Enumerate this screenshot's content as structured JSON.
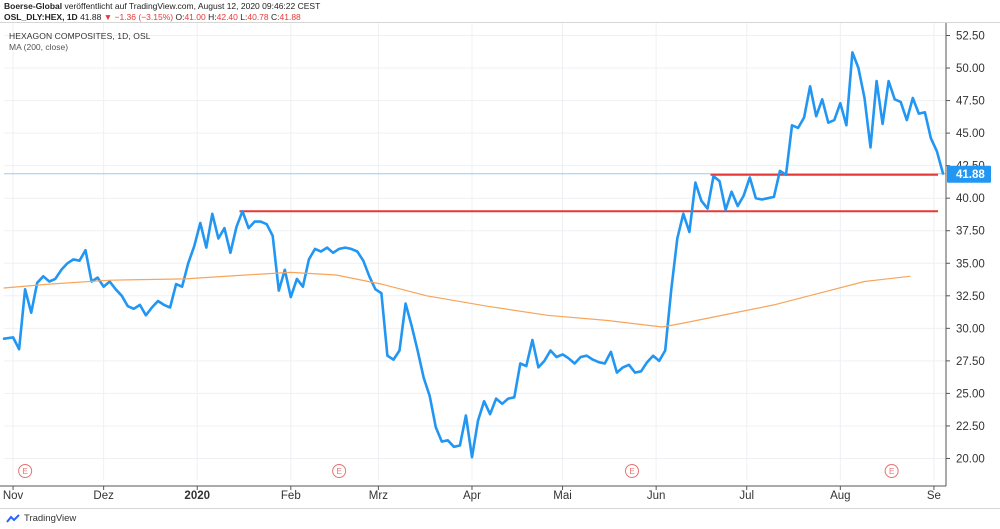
{
  "header": {
    "publisher": "Boerse-Global",
    "published_text": " veröffentlicht auf TradingView.com, August 12, 2020 09:46:22 CEST"
  },
  "quote": {
    "symbol": "OSL_DLY:HEX, 1D",
    "last": "41.88",
    "change": "▼ −1.36 (−3.15%)",
    "o_label": "O:",
    "o": "41.00",
    "h_label": "H:",
    "h": "42.40",
    "l_label": "L:",
    "l": "40.78",
    "c_label": "C:",
    "c": "41.88"
  },
  "legend": {
    "title": "HEXAGON COMPOSITES, 1D, OSL",
    "ma": "MA (200, close)"
  },
  "footer": {
    "brand": "TradingView"
  },
  "colors": {
    "price": "#2196f3",
    "ma": "#f7a55a",
    "hline": "#e53935",
    "last_label": "#2196f3",
    "event_marker": "#e57373"
  },
  "chart_data": {
    "type": "line",
    "title": "HEXAGON COMPOSITES, 1D, OSL",
    "xlabel": "",
    "ylabel": "",
    "y_ticks": [
      "20.00",
      "22.50",
      "25.00",
      "27.50",
      "30.00",
      "32.50",
      "35.00",
      "37.50",
      "40.00",
      "42.50",
      "45.00",
      "47.50",
      "50.00",
      "52.50"
    ],
    "x_ticks": [
      "Nov",
      "Dez",
      "2020",
      "Feb",
      "Mrz",
      "Apr",
      "Mai",
      "Jun",
      "Jul",
      "Aug",
      "Se"
    ],
    "x_tick_days": [
      3,
      33,
      64,
      95,
      124,
      155,
      185,
      216,
      246,
      277,
      308
    ],
    "ylim": [
      18.5,
      53
    ],
    "xlim_days": [
      0,
      312
    ],
    "grid": true,
    "last_price_label": "41.88",
    "last_price": 41.88,
    "event_markers": {
      "label": "E",
      "days": [
        7,
        111,
        208,
        294
      ]
    },
    "horizontal_lines": [
      {
        "value": 41.8,
        "start_day": 234,
        "end_day": 312
      },
      {
        "value": 39.0,
        "start_day": 78,
        "end_day": 312
      }
    ],
    "series": [
      {
        "name": "OSL_DLY:HEX",
        "points": [
          [
            0,
            29.2
          ],
          [
            3,
            29.3
          ],
          [
            5,
            28.4
          ],
          [
            7,
            33.0
          ],
          [
            9,
            31.2
          ],
          [
            11,
            33.5
          ],
          [
            13,
            34.0
          ],
          [
            15,
            33.6
          ],
          [
            17,
            33.8
          ],
          [
            19,
            34.5
          ],
          [
            21,
            35.0
          ],
          [
            23,
            35.3
          ],
          [
            25,
            35.2
          ],
          [
            27,
            36.0
          ],
          [
            29,
            33.6
          ],
          [
            31,
            33.9
          ],
          [
            33,
            33.2
          ],
          [
            35,
            33.6
          ],
          [
            37,
            33.0
          ],
          [
            39,
            32.5
          ],
          [
            41,
            31.7
          ],
          [
            43,
            31.5
          ],
          [
            45,
            31.8
          ],
          [
            47,
            31.0
          ],
          [
            49,
            31.6
          ],
          [
            51,
            32.1
          ],
          [
            53,
            31.8
          ],
          [
            55,
            31.6
          ],
          [
            57,
            33.4
          ],
          [
            59,
            33.2
          ],
          [
            61,
            35.0
          ],
          [
            63,
            36.3
          ],
          [
            65,
            38.1
          ],
          [
            67,
            36.2
          ],
          [
            69,
            38.8
          ],
          [
            71,
            36.9
          ],
          [
            73,
            37.7
          ],
          [
            75,
            35.8
          ],
          [
            77,
            37.8
          ],
          [
            79,
            39.0
          ],
          [
            81,
            37.7
          ],
          [
            83,
            38.2
          ],
          [
            85,
            38.2
          ],
          [
            87,
            38.0
          ],
          [
            89,
            37.1
          ],
          [
            91,
            32.9
          ],
          [
            93,
            34.5
          ],
          [
            95,
            32.4
          ],
          [
            97,
            33.8
          ],
          [
            99,
            33.2
          ],
          [
            101,
            35.3
          ],
          [
            103,
            36.1
          ],
          [
            105,
            35.9
          ],
          [
            107,
            36.2
          ],
          [
            109,
            35.8
          ],
          [
            111,
            36.1
          ],
          [
            113,
            36.2
          ],
          [
            115,
            36.1
          ],
          [
            117,
            35.9
          ],
          [
            119,
            35.2
          ],
          [
            121,
            34.0
          ],
          [
            123,
            33.0
          ],
          [
            125,
            32.7
          ],
          [
            127,
            27.9
          ],
          [
            129,
            27.6
          ],
          [
            131,
            28.3
          ],
          [
            133,
            31.9
          ],
          [
            135,
            30.2
          ],
          [
            137,
            28.3
          ],
          [
            139,
            26.2
          ],
          [
            141,
            24.8
          ],
          [
            143,
            22.4
          ],
          [
            145,
            21.3
          ],
          [
            147,
            21.4
          ],
          [
            149,
            20.9
          ],
          [
            151,
            21.0
          ],
          [
            153,
            23.3
          ],
          [
            155,
            20.1
          ],
          [
            157,
            22.9
          ],
          [
            159,
            24.4
          ],
          [
            161,
            23.4
          ],
          [
            163,
            24.6
          ],
          [
            165,
            24.2
          ],
          [
            167,
            24.6
          ],
          [
            169,
            24.7
          ],
          [
            171,
            27.3
          ],
          [
            173,
            27.1
          ],
          [
            175,
            29.1
          ],
          [
            177,
            27.0
          ],
          [
            179,
            27.5
          ],
          [
            181,
            28.3
          ],
          [
            183,
            27.8
          ],
          [
            185,
            28.0
          ],
          [
            187,
            27.7
          ],
          [
            189,
            27.3
          ],
          [
            191,
            27.8
          ],
          [
            193,
            27.9
          ],
          [
            195,
            27.6
          ],
          [
            197,
            27.4
          ],
          [
            199,
            27.3
          ],
          [
            201,
            28.2
          ],
          [
            203,
            26.6
          ],
          [
            205,
            27.0
          ],
          [
            207,
            27.2
          ],
          [
            209,
            26.6
          ],
          [
            211,
            26.7
          ],
          [
            213,
            27.4
          ],
          [
            215,
            27.9
          ],
          [
            217,
            27.5
          ],
          [
            219,
            28.3
          ],
          [
            221,
            33.0
          ],
          [
            223,
            36.9
          ],
          [
            225,
            38.8
          ],
          [
            227,
            37.4
          ],
          [
            229,
            41.2
          ],
          [
            231,
            39.8
          ],
          [
            233,
            39.2
          ],
          [
            235,
            41.7
          ],
          [
            237,
            41.3
          ],
          [
            239,
            39.1
          ],
          [
            241,
            40.5
          ],
          [
            243,
            39.4
          ],
          [
            245,
            40.2
          ],
          [
            247,
            41.6
          ],
          [
            249,
            40.0
          ],
          [
            251,
            39.9
          ],
          [
            253,
            40.0
          ],
          [
            255,
            40.1
          ],
          [
            257,
            42.1
          ],
          [
            259,
            41.8
          ],
          [
            261,
            45.6
          ],
          [
            263,
            45.4
          ],
          [
            265,
            46.2
          ],
          [
            267,
            48.6
          ],
          [
            269,
            46.3
          ],
          [
            271,
            47.6
          ],
          [
            273,
            45.8
          ],
          [
            275,
            46.0
          ],
          [
            277,
            47.3
          ],
          [
            279,
            45.6
          ],
          [
            281,
            51.2
          ],
          [
            283,
            50.0
          ],
          [
            285,
            47.7
          ],
          [
            287,
            43.9
          ],
          [
            289,
            49.0
          ],
          [
            291,
            45.7
          ],
          [
            293,
            49.0
          ],
          [
            295,
            47.6
          ],
          [
            297,
            47.4
          ],
          [
            299,
            46.0
          ],
          [
            301,
            47.7
          ],
          [
            303,
            46.5
          ],
          [
            305,
            46.6
          ],
          [
            307,
            44.6
          ],
          [
            309,
            43.6
          ],
          [
            311,
            41.9
          ]
        ]
      },
      {
        "name": "MA (200, close)",
        "points": [
          [
            0,
            33.1
          ],
          [
            15,
            33.4
          ],
          [
            35,
            33.7
          ],
          [
            60,
            33.8
          ],
          [
            80,
            34.1
          ],
          [
            95,
            34.3
          ],
          [
            110,
            34.1
          ],
          [
            125,
            33.4
          ],
          [
            140,
            32.5
          ],
          [
            160,
            31.7
          ],
          [
            180,
            31.0
          ],
          [
            200,
            30.6
          ],
          [
            218,
            30.1
          ],
          [
            225,
            30.4
          ],
          [
            240,
            31.1
          ],
          [
            255,
            31.8
          ],
          [
            270,
            32.7
          ],
          [
            285,
            33.6
          ],
          [
            300,
            34.0
          ]
        ]
      }
    ]
  }
}
